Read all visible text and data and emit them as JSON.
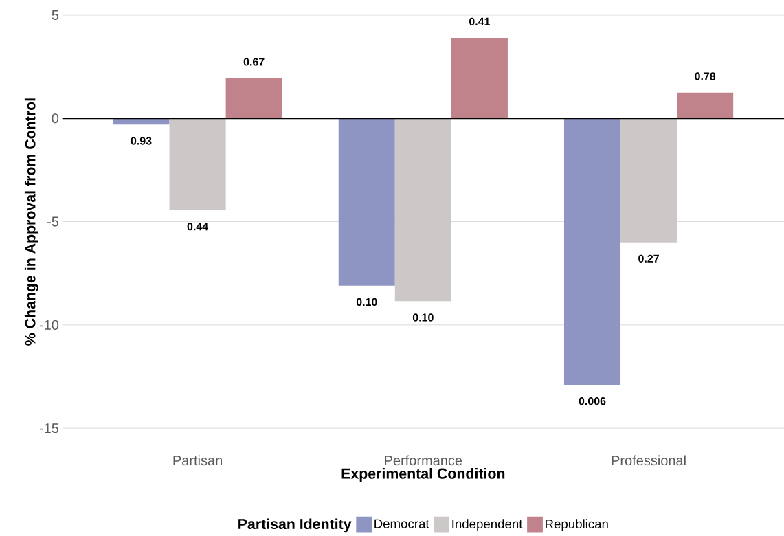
{
  "chart_data": {
    "type": "bar",
    "xlabel": "Experimental Condition",
    "ylabel": "% Change in Approval from Control",
    "legend_title": "Partisan Identity",
    "categories": [
      "Partisan",
      "Performance",
      "Professional"
    ],
    "series": [
      {
        "name": "Democrat",
        "color": "#8e95c2",
        "values": [
          -0.3,
          -8.1,
          -12.9
        ]
      },
      {
        "name": "Independent",
        "color": "#ccc8c8",
        "values": [
          -4.45,
          -8.85,
          -6.0
        ]
      },
      {
        "name": "Republican",
        "color": "#c0828b",
        "values": [
          1.95,
          3.9,
          1.25
        ]
      }
    ],
    "annotations": [
      "0.93",
      "0.10",
      "0.006",
      "0.44",
      "0.10",
      "0.27",
      "0.67",
      "0.41",
      "0.78"
    ],
    "ylim": [
      -15,
      5
    ],
    "yticks": [
      5,
      0,
      -5,
      -10,
      -15
    ],
    "grid": "y",
    "legend": "bottom",
    "ref_lines": [
      {
        "axis": "y",
        "value": 0,
        "color": "#000000"
      }
    ]
  }
}
